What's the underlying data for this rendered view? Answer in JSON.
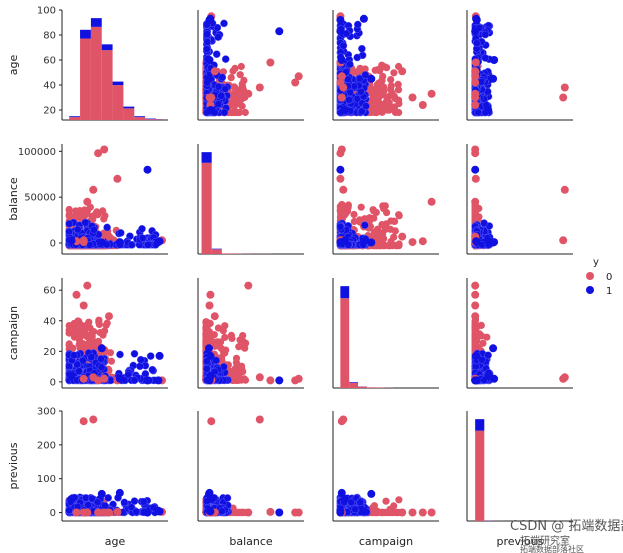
{
  "chart_data": {
    "type": "scatter",
    "figure_kind": "pairplot",
    "hue": "y",
    "hue_levels": [
      "0",
      "1"
    ],
    "colors": {
      "0": "#e05467",
      "1": "#1010e0"
    },
    "variables": [
      "age",
      "balance",
      "campaign",
      "previous"
    ],
    "axes": {
      "age": {
        "lim": [
          12,
          100
        ],
        "ticks": [
          20,
          40,
          60,
          80,
          100
        ]
      },
      "balance": {
        "lim": [
          -12000,
          108000
        ],
        "ticks": [
          0,
          50000,
          100000
        ]
      },
      "campaign": {
        "lim": [
          -4,
          68
        ],
        "ticks": [
          0,
          20,
          40,
          60
        ]
      },
      "previous": {
        "lim": [
          -25,
          300
        ],
        "ticks": [
          0,
          100,
          200,
          300
        ]
      }
    },
    "histograms": {
      "age": {
        "bins": [
          18,
          27,
          36,
          45,
          54,
          63,
          72,
          81,
          90,
          95
        ],
        "y0": [
          1,
          28,
          32,
          24,
          12,
          4,
          1,
          0.3,
          0.2
        ],
        "y1": [
          0.3,
          3,
          3,
          2,
          1.2,
          0.6,
          0.3,
          0.2,
          0.1
        ]
      },
      "balance": {
        "bins": [
          -8000,
          3500,
          15000,
          26500,
          38000,
          49500,
          61000,
          72500,
          84000,
          95500,
          102000
        ],
        "y0": [
          77,
          4,
          0.5,
          0.3,
          0.2,
          0.1,
          0.1,
          0,
          0,
          0
        ],
        "y1": [
          9,
          0.5,
          0,
          0,
          0,
          0,
          0,
          0,
          0,
          0
        ]
      },
      "campaign": {
        "bins": [
          1,
          7,
          13,
          19,
          25,
          31,
          37,
          43,
          49,
          55,
          63
        ],
        "y0": [
          52,
          3,
          0.8,
          0.4,
          0.2,
          0.1,
          0,
          0,
          0,
          0
        ],
        "y1": [
          7,
          0.4,
          0.1,
          0,
          0,
          0,
          0,
          0,
          0,
          0
        ]
      },
      "previous": {
        "bins": [
          0,
          28,
          56,
          84,
          112,
          140,
          168,
          196,
          224,
          252,
          275
        ],
        "y0": [
          250,
          0.8,
          0.2,
          0,
          0,
          0,
          0,
          0,
          0,
          0
        ],
        "y1": [
          32,
          0.5,
          0.1,
          0,
          0,
          0,
          0,
          0,
          0,
          0
        ]
      }
    },
    "outliers": {
      "0": [
        {
          "age": 42,
          "balance": 98000,
          "campaign": 1,
          "previous": 0
        },
        {
          "age": 47,
          "balance": 102000,
          "campaign": 2,
          "previous": 0
        },
        {
          "age": 58,
          "balance": 70000,
          "campaign": 1,
          "previous": 2
        },
        {
          "age": 38,
          "balance": 58000,
          "campaign": 3,
          "previous": 275
        },
        {
          "age": 33,
          "balance": 45000,
          "campaign": 63,
          "previous": 0
        },
        {
          "age": 24,
          "balance": 2000,
          "campaign": 57,
          "previous": 0
        },
        {
          "age": 30,
          "balance": 1000,
          "campaign": 50,
          "previous": 0
        },
        {
          "age": 51,
          "balance": 7000,
          "campaign": 43,
          "previous": 0
        },
        {
          "age": 95,
          "balance": 3000,
          "campaign": 1,
          "previous": 2
        },
        {
          "age": 30,
          "balance": 3000,
          "campaign": 2,
          "previous": 270
        }
      ],
      "1": [
        {
          "age": 83,
          "balance": 80000,
          "campaign": 1,
          "previous": 0
        },
        {
          "age": 93,
          "balance": 2000,
          "campaign": 17,
          "previous": 3
        },
        {
          "age": 45,
          "balance": 500,
          "campaign": 22,
          "previous": 55
        },
        {
          "age": 60,
          "balance": 1000,
          "campaign": 2,
          "previous": 58
        },
        {
          "age": 20,
          "balance": 2500,
          "campaign": 4,
          "previous": 40
        },
        {
          "age": 92,
          "balance": 1000,
          "campaign": 1,
          "previous": 5
        }
      ]
    },
    "legend": {
      "title": "y",
      "entries": [
        "0",
        "1"
      ],
      "placement": "right"
    },
    "grid": false
  },
  "watermark": {
    "line1": "CSDN @ 拓端数据部落",
    "line2": "拓端研究室",
    "line3": "拓端数据部落社区"
  }
}
